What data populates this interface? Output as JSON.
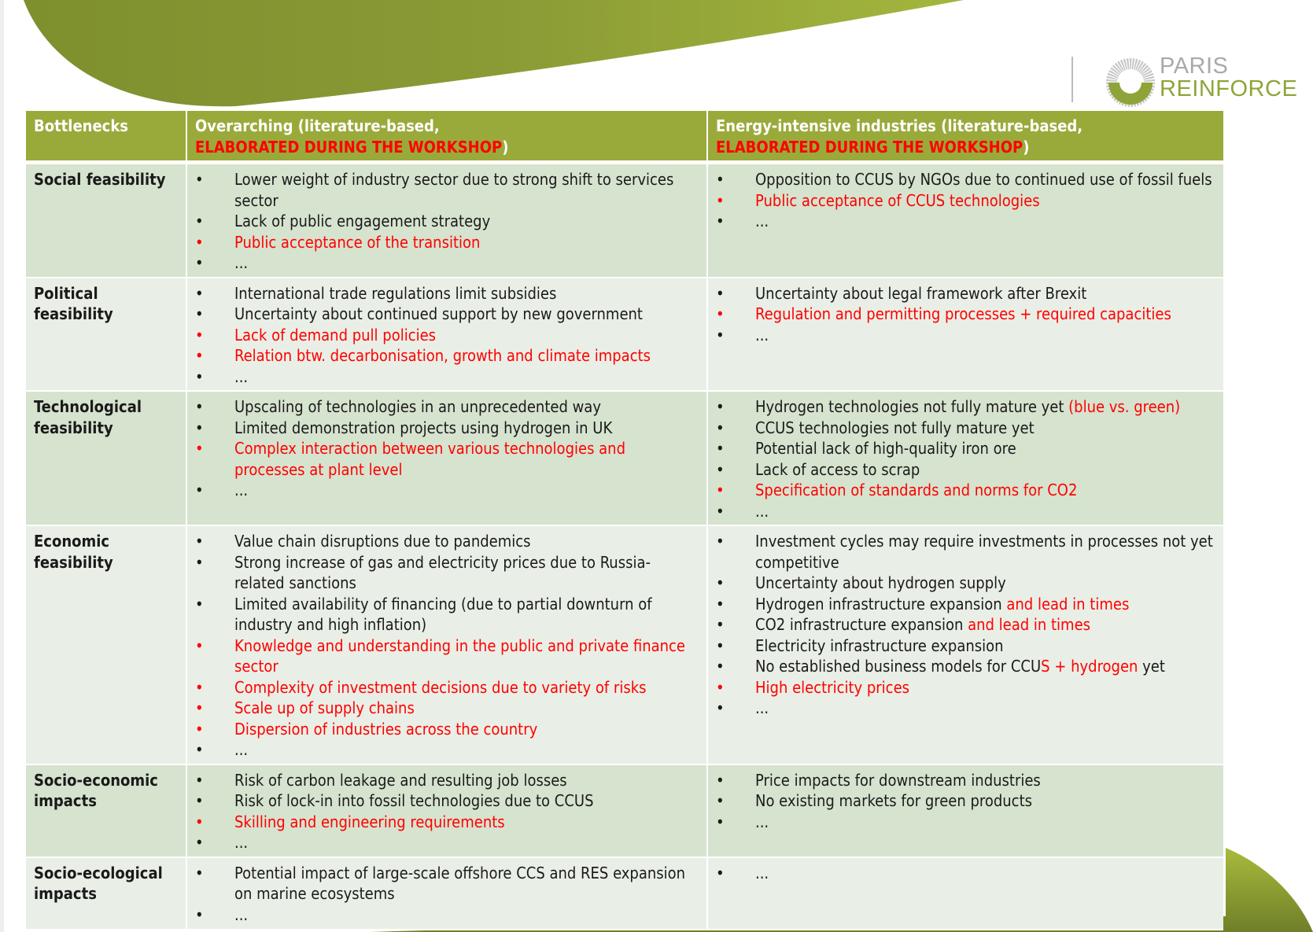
{
  "logo": {
    "line1": "PARIS",
    "line2": "REINFORCE"
  },
  "colors": {
    "header": "#9aaa3a",
    "row_odd": "#d6e3cf",
    "row_even": "#e9efe6",
    "highlight": "#ff0000",
    "brand_green": "#8ea438"
  },
  "table": {
    "headers": [
      [
        {
          "t": "Bottlenecks"
        }
      ],
      [
        {
          "t": "Overarching (literature-based,"
        },
        {
          "br": true
        },
        {
          "t": "ELABORATED DURING THE WORKSHOP",
          "red": true
        },
        {
          "t": ")"
        }
      ],
      [
        {
          "t": "Energy-intensive industries (literature-based,"
        },
        {
          "br": true
        },
        {
          "t": "ELABORATED DURING THE WORKSHOP",
          "red": true
        },
        {
          "t": ")"
        }
      ]
    ],
    "rows": [
      {
        "label": "Social feasibility",
        "overarching": [
          {
            "segs": [
              {
                "t": "Lower weight of industry sector due to strong shift to services sector"
              }
            ]
          },
          {
            "segs": [
              {
                "t": "Lack of public engagement strategy"
              }
            ]
          },
          {
            "red": true,
            "segs": [
              {
                "t": "Public acceptance of the transition",
                "red": true
              }
            ]
          },
          {
            "segs": [
              {
                "t": "..."
              }
            ]
          }
        ],
        "industries": [
          {
            "segs": [
              {
                "t": "Opposition to CCUS by NGOs due to continued use of fossil fuels"
              }
            ]
          },
          {
            "red": true,
            "segs": [
              {
                "t": "Public acceptance of CCUS technologies",
                "red": true
              }
            ]
          },
          {
            "segs": [
              {
                "t": "..."
              }
            ]
          }
        ]
      },
      {
        "label": "Political feasibility",
        "overarching": [
          {
            "segs": [
              {
                "t": "International trade regulations limit subsidies"
              }
            ]
          },
          {
            "segs": [
              {
                "t": "Uncertainty about continued support by new government"
              }
            ]
          },
          {
            "red": true,
            "segs": [
              {
                "t": "Lack of demand pull policies",
                "red": true
              }
            ]
          },
          {
            "red": true,
            "segs": [
              {
                "t": "Relation btw. decarbonisation, growth and climate impacts",
                "red": true
              }
            ]
          },
          {
            "segs": [
              {
                "t": "..."
              }
            ]
          }
        ],
        "industries": [
          {
            "segs": [
              {
                "t": "Uncertainty about legal framework after Brexit"
              }
            ]
          },
          {
            "red": true,
            "segs": [
              {
                "t": "Regulation and permitting processes + required capacities",
                "red": true
              }
            ]
          },
          {
            "segs": [
              {
                "t": "..."
              }
            ]
          }
        ]
      },
      {
        "label": "Technological feasibility",
        "overarching": [
          {
            "segs": [
              {
                "t": "Upscaling of technologies in an unprecedented way"
              }
            ]
          },
          {
            "segs": [
              {
                "t": "Limited demonstration projects using hydrogen in UK"
              }
            ]
          },
          {
            "red": true,
            "segs": [
              {
                "t": "Complex interaction between various technologies and processes at plant level",
                "red": true
              }
            ]
          },
          {
            "segs": [
              {
                "t": "..."
              }
            ]
          }
        ],
        "industries": [
          {
            "segs": [
              {
                "t": "Hydrogen technologies not fully mature yet "
              },
              {
                "t": "(blue vs. green)",
                "red": true
              }
            ]
          },
          {
            "segs": [
              {
                "t": "CCUS technologies not fully mature yet"
              }
            ]
          },
          {
            "segs": [
              {
                "t": "Potential lack of high-quality iron ore"
              }
            ]
          },
          {
            "segs": [
              {
                "t": "Lack of access to scrap"
              }
            ]
          },
          {
            "red": true,
            "segs": [
              {
                "t": "Specification of standards and norms for CO2",
                "red": true
              }
            ]
          },
          {
            "segs": [
              {
                "t": "..."
              }
            ]
          }
        ]
      },
      {
        "label": "Economic feasibility",
        "overarching": [
          {
            "segs": [
              {
                "t": "Value chain disruptions due to pandemics"
              }
            ]
          },
          {
            "segs": [
              {
                "t": "Strong increase of gas and electricity prices due to Russia-related sanctions"
              }
            ]
          },
          {
            "segs": [
              {
                "t": "Limited availability of financing (due to partial downturn of industry and high inflation)"
              }
            ]
          },
          {
            "red": true,
            "segs": [
              {
                "t": "Knowledge and understanding in the public and private finance sector",
                "red": true
              }
            ]
          },
          {
            "red": true,
            "segs": [
              {
                "t": "Complexity of investment decisions due to variety of risks",
                "red": true
              }
            ]
          },
          {
            "red": true,
            "segs": [
              {
                "t": "Scale up of supply chains",
                "red": true
              }
            ]
          },
          {
            "red": true,
            "segs": [
              {
                "t": "Dispersion of  industries across the country",
                "red": true
              }
            ]
          },
          {
            "segs": [
              {
                "t": "..."
              }
            ]
          }
        ],
        "industries": [
          {
            "segs": [
              {
                "t": "Investment cycles may require investments in processes not yet competitive"
              }
            ]
          },
          {
            "segs": [
              {
                "t": "Uncertainty about hydrogen supply"
              }
            ]
          },
          {
            "segs": [
              {
                "t": "Hydrogen infrastructure expansion "
              },
              {
                "t": "and lead in times",
                "red": true
              }
            ]
          },
          {
            "segs": [
              {
                "t": "CO2 infrastructure expansion "
              },
              {
                "t": "and lead in times",
                "red": true
              }
            ]
          },
          {
            "segs": [
              {
                "t": "Electricity infrastructure expansion"
              }
            ]
          },
          {
            "segs": [
              {
                "t": "No established business models for CCU"
              },
              {
                "t": "S + hydrogen",
                "red": true
              },
              {
                "t": " yet"
              }
            ]
          },
          {
            "red": true,
            "segs": [
              {
                "t": "High electricity prices",
                "red": true
              }
            ]
          },
          {
            "segs": [
              {
                "t": "..."
              }
            ]
          }
        ]
      },
      {
        "label": "Socio-economic impacts",
        "overarching": [
          {
            "segs": [
              {
                "t": "Risk of carbon leakage and resulting job losses"
              }
            ]
          },
          {
            "segs": [
              {
                "t": "Risk of lock-in into fossil technologies due to CCUS"
              }
            ]
          },
          {
            "red": true,
            "segs": [
              {
                "t": "Skilling and engineering requirements",
                "red": true
              }
            ]
          },
          {
            "segs": [
              {
                "t": "..."
              }
            ]
          }
        ],
        "industries": [
          {
            "segs": [
              {
                "t": "Price impacts for downstream industries"
              }
            ]
          },
          {
            "segs": [
              {
                "t": "No existing markets for green products"
              }
            ]
          },
          {
            "segs": [
              {
                "t": "..."
              }
            ]
          }
        ]
      },
      {
        "label": "Socio-ecological impacts",
        "overarching": [
          {
            "segs": [
              {
                "t": "Potential impact of large-scale offshore CCS and RES expansion on marine ecosystems"
              }
            ]
          },
          {
            "segs": [
              {
                "t": "..."
              }
            ]
          }
        ],
        "industries": [
          {
            "segs": [
              {
                "t": "..."
              }
            ]
          }
        ]
      }
    ]
  }
}
